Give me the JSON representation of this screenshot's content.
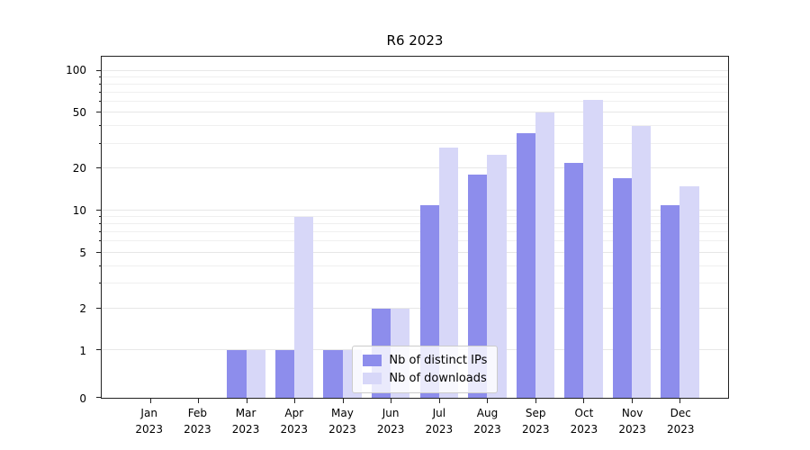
{
  "figure": {
    "title": "R6 2023"
  },
  "chart_data": {
    "type": "bar",
    "title": "R6 2023",
    "months": [
      "Jan",
      "Feb",
      "Mar",
      "Apr",
      "May",
      "Jun",
      "Jul",
      "Aug",
      "Sep",
      "Oct",
      "Nov",
      "Dec"
    ],
    "year": "2023",
    "series": [
      {
        "name": "Nb of distinct IPs",
        "color": "#8d8dec",
        "values": [
          0,
          0,
          1,
          1,
          1,
          2,
          11,
          18,
          36,
          22,
          17,
          11
        ]
      },
      {
        "name": "Nb of downloads",
        "color": "#d7d7f8",
        "values": [
          0,
          0,
          1,
          9,
          1,
          2,
          28,
          25,
          50,
          62,
          40,
          15
        ]
      }
    ],
    "yscale": "symlog",
    "yticks": [
      0,
      1,
      2,
      5,
      10,
      20,
      50,
      100
    ],
    "yticks_minor": [
      3,
      4,
      6,
      7,
      8,
      9,
      30,
      40,
      60,
      70,
      80,
      90
    ],
    "ylim": [
      0,
      120
    ],
    "grid": true,
    "legend_position": "lower-center"
  }
}
